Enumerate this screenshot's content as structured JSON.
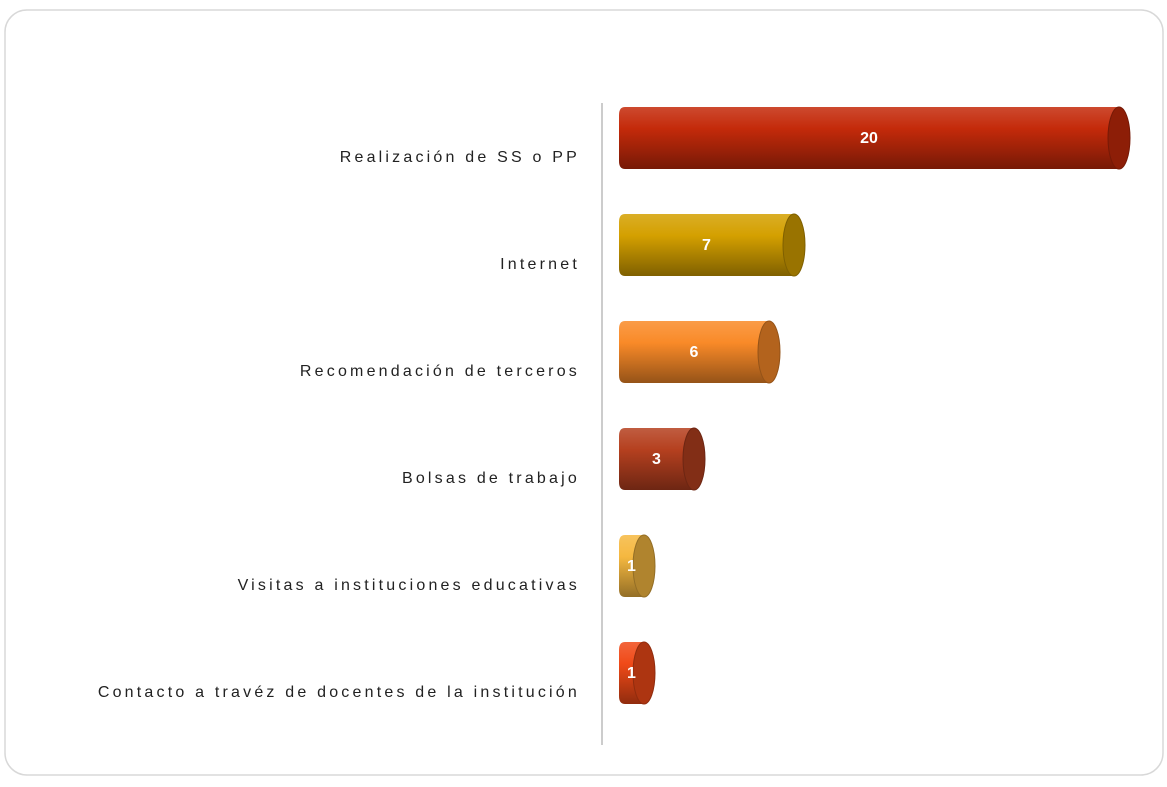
{
  "chart_data": {
    "type": "bar",
    "orientation": "horizontal",
    "categories": [
      "Realización de SS o PP",
      "Internet",
      "Recomendación de terceros",
      "Bolsas de trabajo",
      "Visitas a instituciones educativas",
      "Contacto a travéz de docentes de la institución"
    ],
    "values": [
      20,
      7,
      6,
      3,
      1,
      1
    ],
    "colors": [
      "#c42a0a",
      "#d4a000",
      "#f98a28",
      "#b5401f",
      "#f5b840",
      "#f04a18"
    ]
  }
}
